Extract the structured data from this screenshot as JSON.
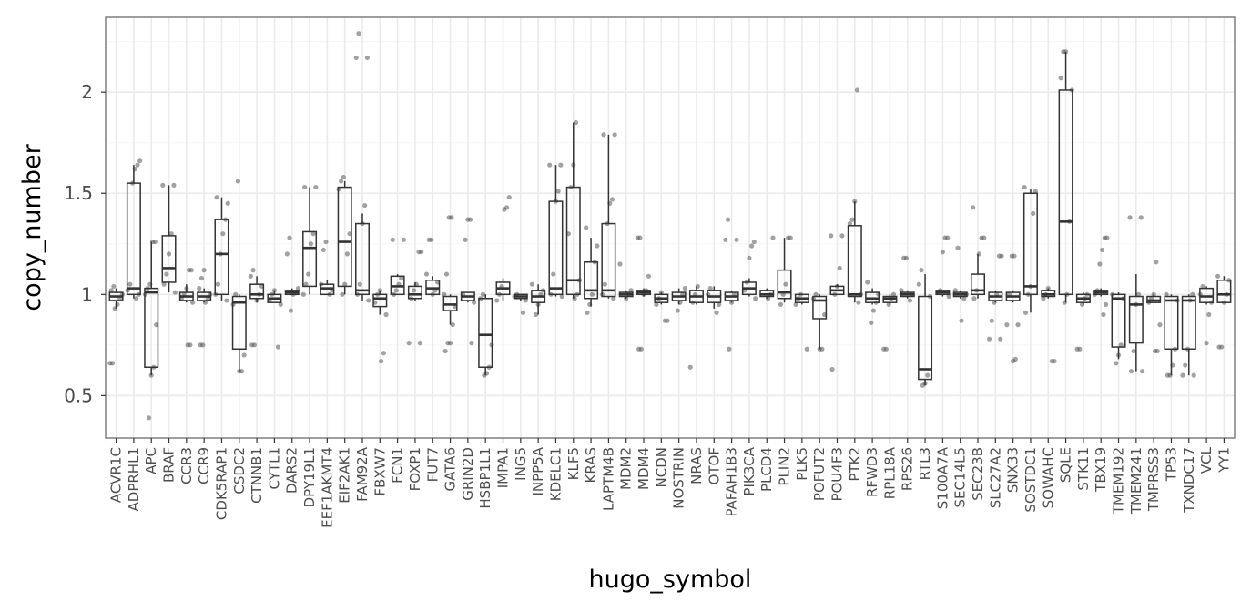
{
  "chart_data": {
    "type": "box",
    "xlabel": "hugo_symbol",
    "ylabel": "copy_number",
    "ylim": [
      0.29,
      2.37
    ],
    "yticks": [
      0.5,
      1,
      1.5,
      2
    ],
    "ytick_labels": [
      "0.5",
      "1",
      "1.5",
      "2"
    ],
    "grid": true,
    "colors": {
      "box": "#333333",
      "point": "#555555",
      "grid_major": "#ebebeb",
      "grid_minor": "#f5f5f5",
      "panel_border": "#7f7f7f"
    },
    "categories": [
      "ACVR1C",
      "ADPRHL1",
      "APC",
      "BRAF",
      "CCR3",
      "CCR9",
      "CDK5RAP1",
      "CSDC2",
      "CTNNB1",
      "CYTL1",
      "DARS2",
      "DPY19L1",
      "EEF1AKMT4",
      "EIF2AK1",
      "FAM92A",
      "FBXW7",
      "FCN1",
      "FOXP1",
      "FUT7",
      "GATA6",
      "GRIN2D",
      "HSBP1L1",
      "IMPA1",
      "ING5",
      "INPP5A",
      "KDELC1",
      "KLF5",
      "KRAS",
      "LAPTM4B",
      "MDM2",
      "MDM4",
      "NCDN",
      "NOSTRIN",
      "NRAS",
      "OTOF",
      "PAFAH1B3",
      "PIK3CA",
      "PLCD4",
      "PLIN2",
      "PLK5",
      "POFUT2",
      "POU4F3",
      "PTK2",
      "RFWD3",
      "RPL18A",
      "RPS26",
      "RTL3",
      "S100A7A",
      "SEC14L5",
      "SEC23B",
      "SLC27A2",
      "SNX33",
      "SOSTDC1",
      "SOWAHC",
      "SQLE",
      "STK11",
      "TBX19",
      "TMEM192",
      "TMEM241",
      "TMPRSS3",
      "TP53",
      "TXNDC17",
      "VCL",
      "YY1"
    ],
    "boxes": [
      {
        "name": "ACVR1C",
        "min": 0.93,
        "q1": 0.97,
        "median": 0.99,
        "q3": 1.01,
        "max": 1.03,
        "points": [
          0.66,
          0.66,
          0.93,
          0.95,
          0.98,
          1.0,
          1.02,
          1.04
        ]
      },
      {
        "name": "ADPRHL1",
        "min": 0.98,
        "q1": 1.0,
        "median": 1.03,
        "q3": 1.55,
        "max": 1.64,
        "points": [
          0.98,
          1.0,
          1.02,
          1.05,
          1.55,
          1.62,
          1.64,
          1.66
        ]
      },
      {
        "name": "APC",
        "min": 0.6,
        "q1": 0.64,
        "median": 1.01,
        "q3": 1.03,
        "max": 1.26,
        "points": [
          0.39,
          0.6,
          0.64,
          0.85,
          1.0,
          1.03,
          1.05,
          1.26,
          1.26
        ]
      },
      {
        "name": "BRAF",
        "min": 1.01,
        "q1": 1.06,
        "median": 1.13,
        "q3": 1.29,
        "max": 1.54,
        "points": [
          1.01,
          1.05,
          1.1,
          1.2,
          1.3,
          1.54,
          1.54
        ]
      },
      {
        "name": "CCR3",
        "min": 0.96,
        "q1": 0.97,
        "median": 0.99,
        "q3": 1.01,
        "max": 1.05,
        "points": [
          0.75,
          0.75,
          0.96,
          0.98,
          1.0,
          1.03,
          1.12,
          1.12
        ]
      },
      {
        "name": "CCR9",
        "min": 0.96,
        "q1": 0.97,
        "median": 0.99,
        "q3": 1.01,
        "max": 1.03,
        "points": [
          0.75,
          0.75,
          0.96,
          0.98,
          1.0,
          1.03,
          1.08,
          1.12
        ]
      },
      {
        "name": "CDK5RAP1",
        "min": 0.97,
        "q1": 1.0,
        "median": 1.2,
        "q3": 1.37,
        "max": 1.48,
        "points": [
          0.97,
          1.0,
          1.05,
          1.2,
          1.3,
          1.37,
          1.45,
          1.48
        ]
      },
      {
        "name": "CSDC2",
        "min": 0.62,
        "q1": 0.73,
        "median": 0.96,
        "q3": 0.99,
        "max": 1.0,
        "points": [
          0.62,
          0.62,
          0.7,
          0.95,
          1.0,
          1.56
        ]
      },
      {
        "name": "CTNNB1",
        "min": 0.96,
        "q1": 0.98,
        "median": 1.0,
        "q3": 1.05,
        "max": 1.09,
        "points": [
          0.75,
          0.75,
          0.97,
          1.0,
          1.04,
          1.09,
          1.12
        ]
      },
      {
        "name": "CYTL1",
        "min": 0.96,
        "q1": 0.96,
        "median": 0.98,
        "q3": 1.0,
        "max": 1.02,
        "points": [
          0.74,
          0.95,
          0.97,
          1.0,
          1.02
        ]
      },
      {
        "name": "DARS2",
        "min": 1.0,
        "q1": 1.0,
        "median": 1.01,
        "q3": 1.02,
        "max": 1.03,
        "points": [
          0.92,
          1.0,
          1.01,
          1.03,
          1.2,
          1.28
        ]
      },
      {
        "name": "DPY19L1",
        "min": 1.0,
        "q1": 1.04,
        "median": 1.23,
        "q3": 1.31,
        "max": 1.53,
        "points": [
          1.0,
          1.05,
          1.1,
          1.25,
          1.3,
          1.53,
          1.53
        ]
      },
      {
        "name": "EEF1AKMT4",
        "min": 1.0,
        "q1": 1.0,
        "median": 1.03,
        "q3": 1.05,
        "max": 1.07,
        "points": [
          1.0,
          1.02,
          1.05,
          1.22,
          1.26
        ]
      },
      {
        "name": "EIF2AK1",
        "min": 1.0,
        "q1": 1.04,
        "median": 1.26,
        "q3": 1.53,
        "max": 1.56,
        "points": [
          1.0,
          1.05,
          1.2,
          1.3,
          1.52,
          1.56,
          1.58
        ]
      },
      {
        "name": "FAM92A",
        "min": 0.97,
        "q1": 1.0,
        "median": 1.02,
        "q3": 1.35,
        "max": 1.4,
        "points": [
          0.97,
          1.0,
          1.05,
          1.35,
          1.44,
          2.17,
          2.17,
          2.29
        ]
      },
      {
        "name": "FBXW7",
        "min": 0.9,
        "q1": 0.94,
        "median": 0.98,
        "q3": 1.0,
        "max": 1.02,
        "points": [
          0.67,
          0.71,
          0.9,
          0.96,
          1.0,
          1.02
        ]
      },
      {
        "name": "FCN1",
        "min": 1.0,
        "q1": 1.0,
        "median": 1.04,
        "q3": 1.09,
        "max": 1.1,
        "points": [
          1.0,
          1.02,
          1.05,
          1.08,
          1.27,
          1.27
        ]
      },
      {
        "name": "FOXP1",
        "min": 0.97,
        "q1": 0.98,
        "median": 1.0,
        "q3": 1.04,
        "max": 1.06,
        "points": [
          0.76,
          0.76,
          0.98,
          1.02,
          1.05,
          1.21,
          1.21
        ]
      },
      {
        "name": "FUT7",
        "min": 1.0,
        "q1": 1.0,
        "median": 1.03,
        "q3": 1.07,
        "max": 1.09,
        "points": [
          1.0,
          1.02,
          1.06,
          1.1,
          1.27,
          1.27
        ]
      },
      {
        "name": "GATA6",
        "min": 0.85,
        "q1": 0.92,
        "median": 0.95,
        "q3": 0.99,
        "max": 1.0,
        "points": [
          0.72,
          0.76,
          0.76,
          0.85,
          0.94,
          1.0,
          1.1,
          1.38,
          1.38
        ]
      },
      {
        "name": "GRIN2D",
        "min": 0.96,
        "q1": 0.97,
        "median": 0.99,
        "q3": 1.01,
        "max": 1.01,
        "points": [
          0.76,
          0.96,
          1.0,
          1.27,
          1.37,
          1.37
        ]
      },
      {
        "name": "HSBP1L1",
        "min": 0.6,
        "q1": 0.64,
        "median": 0.8,
        "q3": 0.98,
        "max": 1.0,
        "points": [
          0.6,
          0.61,
          0.64,
          0.75,
          0.98,
          1.0
        ]
      },
      {
        "name": "IMPA1",
        "min": 0.97,
        "q1": 1.0,
        "median": 1.03,
        "q3": 1.06,
        "max": 1.08,
        "points": [
          0.97,
          1.0,
          1.04,
          1.42,
          1.43,
          1.48
        ]
      },
      {
        "name": "ING5",
        "min": 0.97,
        "q1": 0.98,
        "median": 0.99,
        "q3": 1.0,
        "max": 1.0,
        "points": [
          0.91,
          0.97,
          0.99,
          1.0
        ]
      },
      {
        "name": "INPP5A",
        "min": 0.9,
        "q1": 0.96,
        "median": 0.99,
        "q3": 1.02,
        "max": 1.05,
        "points": [
          0.9,
          0.95,
          1.0,
          1.02,
          1.05
        ]
      },
      {
        "name": "KDELC1",
        "min": 0.99,
        "q1": 1.0,
        "median": 1.03,
        "q3": 1.46,
        "max": 1.64,
        "points": [
          0.99,
          1.0,
          1.1,
          1.46,
          1.51,
          1.64,
          1.64
        ]
      },
      {
        "name": "KLF5",
        "min": 0.98,
        "q1": 1.0,
        "median": 1.07,
        "q3": 1.53,
        "max": 1.85,
        "points": [
          0.98,
          1.0,
          1.07,
          1.3,
          1.53,
          1.64,
          1.85
        ]
      },
      {
        "name": "KRAS",
        "min": 0.94,
        "q1": 0.98,
        "median": 1.02,
        "q3": 1.16,
        "max": 1.28,
        "points": [
          0.91,
          0.95,
          1.0,
          1.16,
          1.24,
          1.33
        ]
      },
      {
        "name": "LAPTM4B",
        "min": 0.98,
        "q1": 0.99,
        "median": 1.02,
        "q3": 1.35,
        "max": 1.79,
        "points": [
          0.98,
          1.0,
          1.05,
          1.35,
          1.45,
          1.47,
          1.79,
          1.79
        ]
      },
      {
        "name": "MDM2",
        "min": 0.98,
        "q1": 0.99,
        "median": 1.0,
        "q3": 1.01,
        "max": 1.02,
        "points": [
          0.98,
          1.0,
          1.02,
          1.15
        ]
      },
      {
        "name": "MDM4",
        "min": 0.99,
        "q1": 1.0,
        "median": 1.01,
        "q3": 1.02,
        "max": 1.03,
        "points": [
          0.73,
          0.73,
          1.0,
          1.02,
          1.09,
          1.28,
          1.28
        ]
      },
      {
        "name": "NCDN",
        "min": 0.95,
        "q1": 0.96,
        "median": 0.98,
        "q3": 1.0,
        "max": 1.01,
        "points": [
          0.87,
          0.87,
          0.95,
          0.98,
          1.01
        ]
      },
      {
        "name": "NOSTRIN",
        "min": 0.95,
        "q1": 0.97,
        "median": 0.99,
        "q3": 1.01,
        "max": 1.03,
        "points": [
          0.92,
          0.96,
          1.0,
          1.03
        ]
      },
      {
        "name": "NRAS",
        "min": 0.95,
        "q1": 0.96,
        "median": 0.99,
        "q3": 1.02,
        "max": 1.04,
        "points": [
          0.64,
          0.96,
          1.0,
          1.04
        ]
      },
      {
        "name": "OTOF",
        "min": 0.93,
        "q1": 0.96,
        "median": 0.99,
        "q3": 1.02,
        "max": 1.04,
        "points": [
          0.91,
          0.95,
          1.0,
          1.03
        ]
      },
      {
        "name": "PAFAH1B3",
        "min": 0.96,
        "q1": 0.97,
        "median": 0.99,
        "q3": 1.01,
        "max": 1.02,
        "points": [
          0.73,
          0.96,
          1.0,
          1.27,
          1.27,
          1.37
        ]
      },
      {
        "name": "PIK3CA",
        "min": 0.99,
        "q1": 1.0,
        "median": 1.03,
        "q3": 1.06,
        "max": 1.08,
        "points": [
          0.98,
          1.02,
          1.06,
          1.18,
          1.24,
          1.26
        ]
      },
      {
        "name": "PLCD4",
        "min": 0.98,
        "q1": 0.99,
        "median": 1.0,
        "q3": 1.02,
        "max": 1.03,
        "points": [
          0.98,
          1.0,
          1.28
        ]
      },
      {
        "name": "PLIN2",
        "min": 0.96,
        "q1": 0.98,
        "median": 1.01,
        "q3": 1.12,
        "max": 1.28,
        "points": [
          0.95,
          1.0,
          1.05,
          1.28,
          1.28
        ]
      },
      {
        "name": "PLK5",
        "min": 0.95,
        "q1": 0.96,
        "median": 0.98,
        "q3": 1.0,
        "max": 1.0,
        "points": [
          0.73,
          0.95,
          0.98,
          1.0
        ]
      },
      {
        "name": "POFUT2",
        "min": 0.73,
        "q1": 0.88,
        "median": 0.97,
        "q3": 0.99,
        "max": 1.0,
        "points": [
          0.73,
          0.73,
          0.9,
          0.98,
          1.0
        ]
      },
      {
        "name": "POU4F3",
        "min": 1.0,
        "q1": 1.0,
        "median": 1.02,
        "q3": 1.04,
        "max": 1.05,
        "points": [
          0.63,
          1.0,
          1.04,
          1.13,
          1.29,
          1.29
        ]
      },
      {
        "name": "PTK2",
        "min": 0.96,
        "q1": 0.99,
        "median": 1.0,
        "q3": 1.34,
        "max": 1.46,
        "points": [
          0.96,
          1.0,
          1.35,
          1.37,
          1.46,
          2.01
        ]
      },
      {
        "name": "RFWD3",
        "min": 0.95,
        "q1": 0.96,
        "median": 0.98,
        "q3": 1.01,
        "max": 1.03,
        "points": [
          0.86,
          0.92,
          0.96,
          1.0,
          1.06
        ]
      },
      {
        "name": "RPL18A",
        "min": 0.95,
        "q1": 0.96,
        "median": 0.98,
        "q3": 0.99,
        "max": 1.0,
        "points": [
          0.73,
          0.73,
          0.95,
          0.98,
          1.0
        ]
      },
      {
        "name": "RPS26",
        "min": 0.98,
        "q1": 0.99,
        "median": 1.0,
        "q3": 1.01,
        "max": 1.02,
        "points": [
          0.97,
          1.0,
          1.02,
          1.18,
          1.18
        ]
      },
      {
        "name": "RTL3",
        "min": 0.55,
        "q1": 0.58,
        "median": 0.63,
        "q3": 0.99,
        "max": 1.1,
        "points": [
          0.55,
          0.56,
          0.6,
          0.99,
          1.05,
          1.12
        ]
      },
      {
        "name": "S100A7A",
        "min": 0.99,
        "q1": 1.0,
        "median": 1.01,
        "q3": 1.02,
        "max": 1.02,
        "points": [
          0.99,
          1.01,
          1.02,
          1.21,
          1.28,
          1.28
        ]
      },
      {
        "name": "SEC14L5",
        "min": 0.98,
        "q1": 0.99,
        "median": 1.0,
        "q3": 1.01,
        "max": 1.02,
        "points": [
          0.87,
          0.98,
          1.0,
          1.02,
          1.23
        ]
      },
      {
        "name": "SEC23B",
        "min": 0.98,
        "q1": 1.0,
        "median": 1.02,
        "q3": 1.1,
        "max": 1.2,
        "points": [
          0.98,
          1.02,
          1.2,
          1.28,
          1.28,
          1.43
        ]
      },
      {
        "name": "SLC27A2",
        "min": 0.96,
        "q1": 0.97,
        "median": 0.99,
        "q3": 1.01,
        "max": 1.02,
        "points": [
          0.78,
          0.78,
          0.87,
          0.96,
          1.0,
          1.19,
          1.19
        ]
      },
      {
        "name": "SNX33",
        "min": 0.96,
        "q1": 0.97,
        "median": 0.99,
        "q3": 1.01,
        "max": 1.02,
        "points": [
          0.67,
          0.68,
          0.85,
          0.85,
          1.0,
          1.19,
          1.19
        ]
      },
      {
        "name": "SOSTDC1",
        "min": 0.91,
        "q1": 1.0,
        "median": 1.04,
        "q3": 1.5,
        "max": 1.52,
        "points": [
          0.91,
          1.0,
          1.04,
          1.4,
          1.51,
          1.53
        ]
      },
      {
        "name": "SOWAHC",
        "min": 0.98,
        "q1": 0.99,
        "median": 1.0,
        "q3": 1.02,
        "max": 1.03,
        "points": [
          0.67,
          0.67,
          0.98,
          1.0,
          1.03
        ]
      },
      {
        "name": "SQLE",
        "min": 0.96,
        "q1": 1.0,
        "median": 1.36,
        "q3": 2.01,
        "max": 2.2,
        "points": [
          0.96,
          1.0,
          1.36,
          2.01,
          2.07,
          2.2,
          2.2
        ]
      },
      {
        "name": "STK11",
        "min": 0.95,
        "q1": 0.96,
        "median": 0.98,
        "q3": 1.0,
        "max": 1.01,
        "points": [
          0.73,
          0.73,
          0.95,
          0.98,
          1.0
        ]
      },
      {
        "name": "TBX19",
        "min": 0.99,
        "q1": 1.0,
        "median": 1.01,
        "q3": 1.02,
        "max": 1.03,
        "points": [
          0.9,
          0.95,
          1.0,
          1.02,
          1.15,
          1.22,
          1.28,
          1.28
        ]
      },
      {
        "name": "TMEM192",
        "min": 0.68,
        "q1": 0.74,
        "median": 0.98,
        "q3": 1.0,
        "max": 1.01,
        "points": [
          0.66,
          0.7,
          0.75,
          0.98,
          1.0
        ]
      },
      {
        "name": "TMEM241",
        "min": 0.62,
        "q1": 0.76,
        "median": 0.95,
        "q3": 0.99,
        "max": 1.1,
        "points": [
          0.62,
          0.62,
          0.72,
          0.95,
          1.0,
          1.38,
          1.38
        ]
      },
      {
        "name": "TMPRSS3",
        "min": 0.96,
        "q1": 0.96,
        "median": 0.97,
        "q3": 0.99,
        "max": 1.0,
        "points": [
          0.72,
          0.72,
          0.85,
          0.96,
          0.98,
          1.0,
          1.16
        ]
      },
      {
        "name": "TP53",
        "min": 0.6,
        "q1": 0.73,
        "median": 0.97,
        "q3": 0.99,
        "max": 1.0,
        "points": [
          0.6,
          0.6,
          0.65,
          0.73,
          0.97,
          1.0
        ]
      },
      {
        "name": "TXNDC17",
        "min": 0.6,
        "q1": 0.73,
        "median": 0.97,
        "q3": 0.99,
        "max": 1.0,
        "points": [
          0.6,
          0.6,
          0.65,
          0.73,
          0.97,
          1.0
        ]
      },
      {
        "name": "VCL",
        "min": 0.95,
        "q1": 0.96,
        "median": 0.99,
        "q3": 1.03,
        "max": 1.04,
        "points": [
          0.76,
          0.9,
          0.96,
          1.0,
          1.04
        ]
      },
      {
        "name": "YY1",
        "min": 0.96,
        "q1": 0.96,
        "median": 1.0,
        "q3": 1.07,
        "max": 1.09,
        "points": [
          0.74,
          0.74,
          0.96,
          1.0,
          1.07,
          1.09
        ]
      }
    ]
  }
}
